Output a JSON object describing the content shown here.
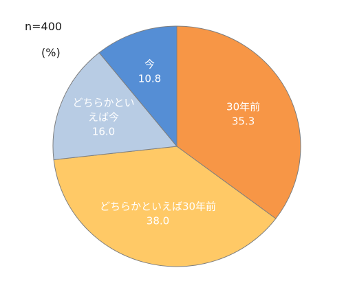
{
  "header": {
    "sample_size": "n=400",
    "unit": "(%)"
  },
  "chart_data": {
    "type": "pie",
    "title": "",
    "start_angle_deg": 0,
    "direction": "clockwise",
    "categories": [
      "30年前",
      "どちらかといえば30年前",
      "どちらかといえば今",
      "今"
    ],
    "values": [
      35.3,
      38.0,
      16.0,
      10.8
    ],
    "value_labels": [
      "35.3",
      "38.0",
      "16.0",
      "10.8"
    ],
    "label_lines": [
      [
        "30年前",
        "35.3"
      ],
      [
        "どちらかといえば30年前",
        "38.0"
      ],
      [
        "どちらかとい",
        "えば今",
        "16.0"
      ],
      [
        "今",
        "10.8"
      ]
    ],
    "colors": [
      "#F79646",
      "#FFC966",
      "#B8CCE4",
      "#558ED5"
    ],
    "label_colors": [
      "#ffffff",
      "#1a1a1a",
      "#1a1a1a",
      "#ffffff"
    ],
    "border_color": "#7F7F7F"
  }
}
